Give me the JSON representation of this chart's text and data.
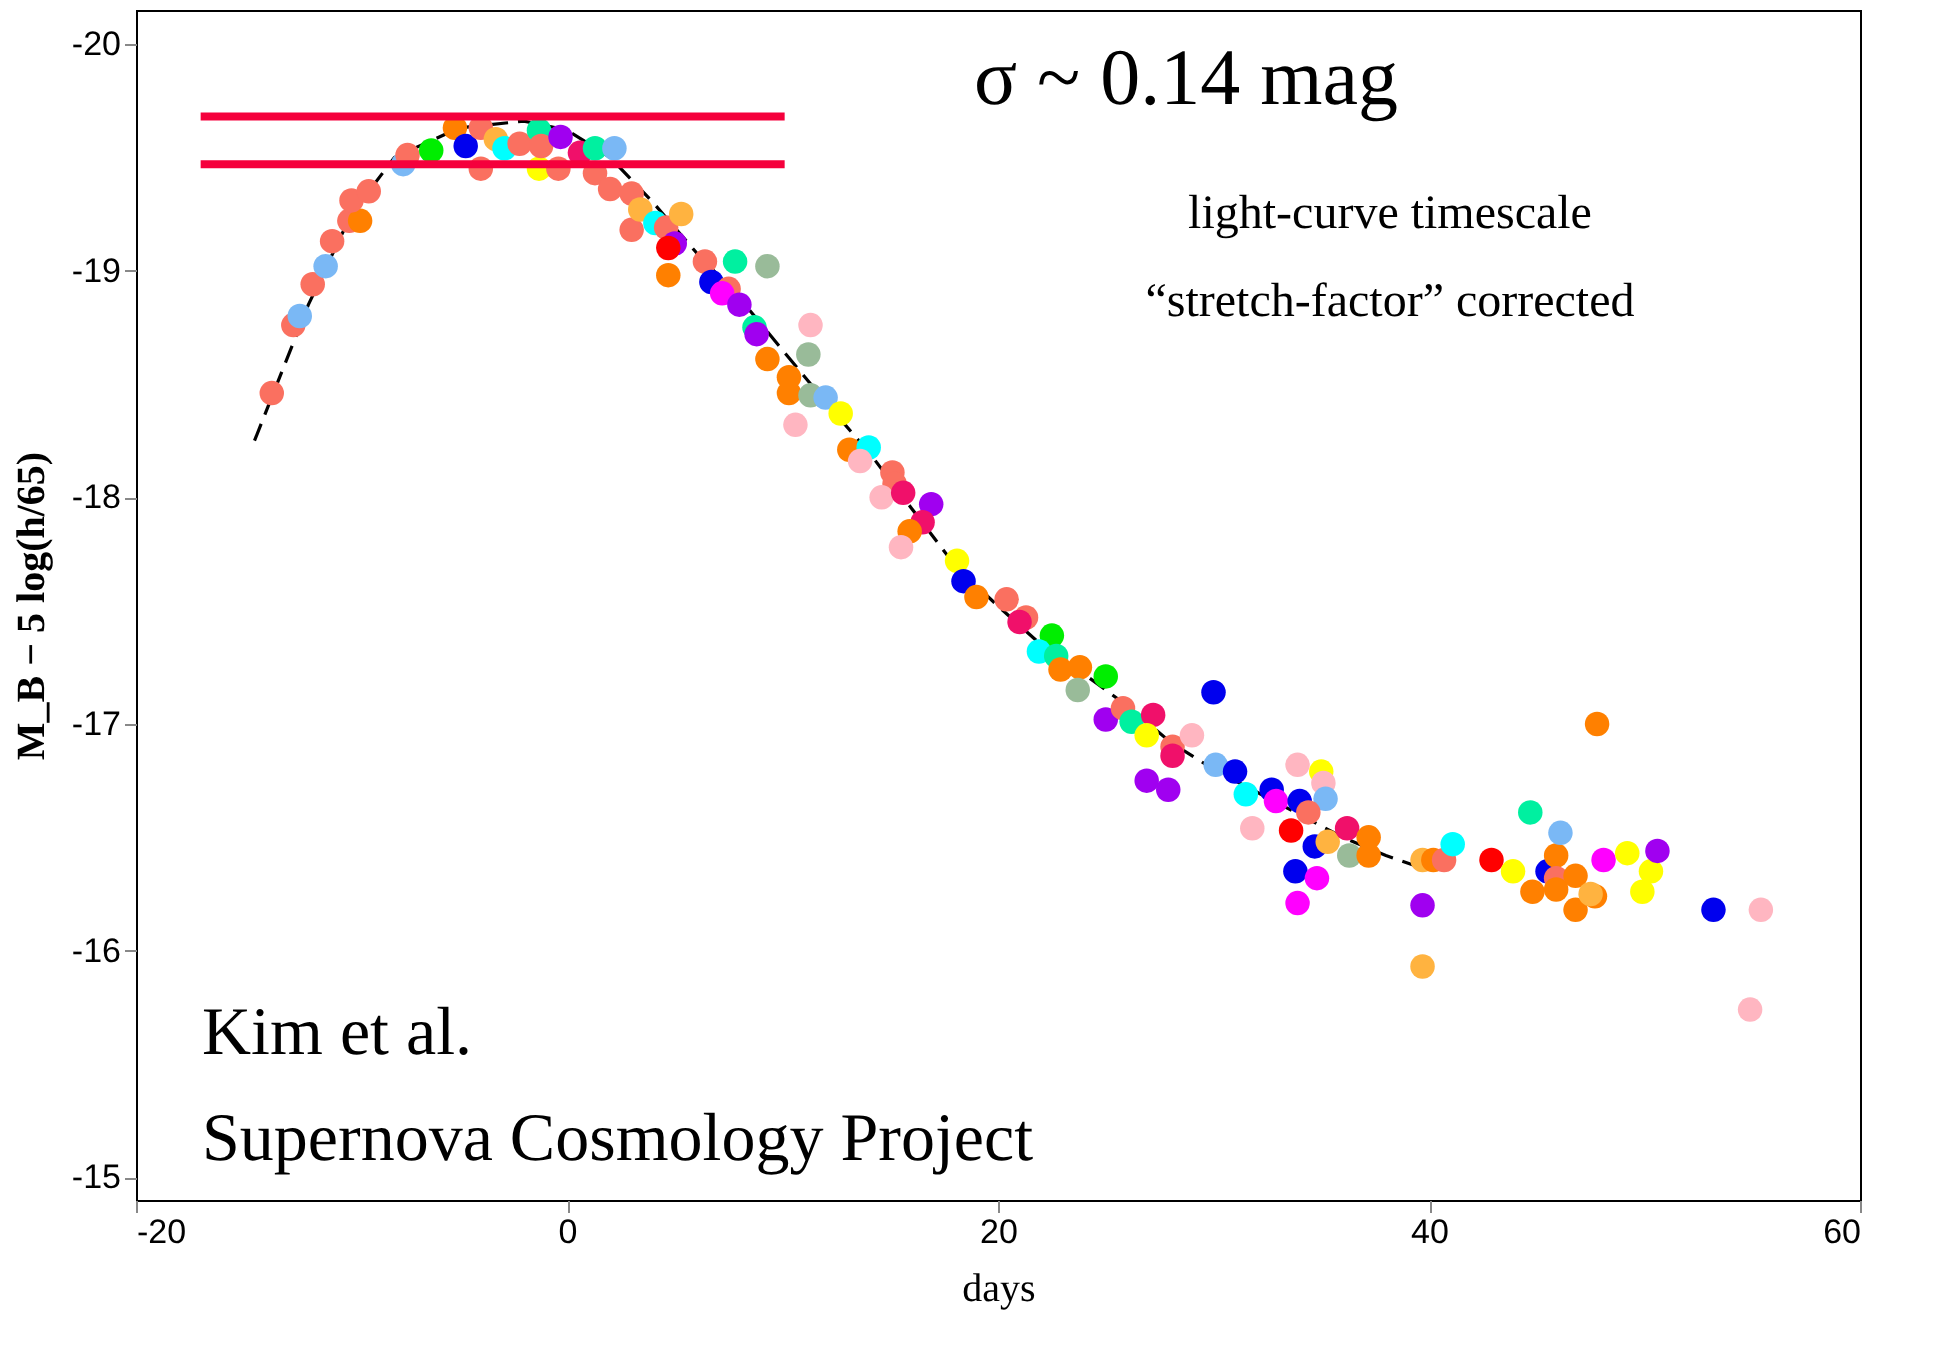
{
  "chart_data": {
    "type": "scatter",
    "xlabel": "days",
    "ylabel": "M_B − 5 log(h/65)",
    "xlim": [
      -20,
      60
    ],
    "ylim": [
      -14.9,
      -20.15
    ],
    "xticks": [
      -20,
      0,
      20,
      40,
      60
    ],
    "yticks": [
      -20,
      -19,
      -18,
      -17,
      -16,
      -15
    ],
    "grid": false,
    "annotations": [
      "σ ~ 0.14 mag",
      "light-curve timescale",
      "“stretch-factor” corrected",
      "Kim et al.",
      "Supernova Cosmology Project"
    ],
    "series": [
      {
        "type": "line",
        "color": "#000000",
        "line_style": "dashed",
        "marker": "none",
        "x": [
          -14.5,
          -12,
          -10,
          -8,
          -5,
          -2,
          0,
          2,
          4,
          6,
          8,
          10,
          12,
          14,
          16,
          18,
          20,
          22,
          24,
          26,
          28,
          30,
          32,
          34,
          36,
          38,
          39.5
        ],
        "values": [
          -18.25,
          -18.85,
          -19.25,
          -19.5,
          -19.63,
          -19.66,
          -19.62,
          -19.5,
          -19.3,
          -19.08,
          -18.88,
          -18.65,
          -18.42,
          -18.2,
          -17.95,
          -17.7,
          -17.52,
          -17.35,
          -17.22,
          -17.08,
          -16.92,
          -16.8,
          -16.7,
          -16.6,
          -16.5,
          -16.42,
          -16.37
        ]
      },
      {
        "marker": "circle",
        "x": [
          -13.7,
          -12.7,
          -12.4,
          -11.8,
          -11.2,
          -10.9,
          -10.1,
          -9.6,
          -10.0,
          -9.2,
          -7.6,
          -7.4,
          -6.3,
          -5.2,
          -4.7,
          -4.0,
          -4.0,
          -3.3,
          -2.9,
          -2.2,
          -1.3,
          -1.3,
          -1.2,
          -0.3,
          -0.4,
          0.6,
          1.3,
          2.2,
          1.3,
          2.0,
          3.0,
          3.0,
          3.4,
          4.1,
          4.6,
          5.3,
          5.0,
          4.7,
          4.7,
          6.4,
          7.8,
          6.7,
          7.5,
          7.2,
          8.0,
          9.3,
          8.7,
          8.8,
          9.3,
          11.3,
          11.2,
          10.3,
          10.3,
          11.3,
          12.0,
          10.6,
          12.7,
          13.1,
          14.0,
          13.6,
          15.1,
          15.2,
          14.6,
          15.6,
          16.9,
          16.5,
          15.9,
          15.5,
          18.1,
          18.4,
          19.0,
          20.4,
          21.3,
          21.0,
          22.5,
          21.9,
          22.7,
          22.9,
          23.8,
          25.0,
          23.7,
          25.0,
          25.8,
          26.2,
          27.2,
          26.9,
          28.1,
          28.1,
          29.0,
          30.0,
          26.9,
          27.9,
          30.1,
          31.0,
          31.5,
          32.7,
          32.9,
          31.8,
          33.9,
          35.0,
          35.1,
          35.2,
          34.0,
          33.6,
          34.4,
          33.8,
          33.9,
          34.8,
          34.7,
          35.3,
          36.2,
          36.3,
          37.2,
          37.2,
          39.7,
          40.2,
          40.7,
          41.1,
          39.7,
          39.7,
          42.9,
          43.9,
          44.7,
          45.5,
          45.9,
          45.9,
          44.8,
          45.9,
          46.8,
          46.8,
          47.7,
          47.5,
          46.1,
          47.8,
          48.1,
          49.2,
          50.3,
          49.9,
          50.6,
          53.2,
          55.4,
          54.9
        ],
        "values": [
          -18.46,
          -18.76,
          -18.8,
          -18.94,
          -19.02,
          -19.13,
          -19.22,
          -19.22,
          -19.31,
          -19.35,
          -19.47,
          -19.51,
          -19.53,
          -19.63,
          -19.55,
          -19.63,
          -19.45,
          -19.58,
          -19.54,
          -19.56,
          -19.62,
          -19.45,
          -19.55,
          -19.59,
          -19.45,
          -19.52,
          -19.54,
          -19.54,
          -19.43,
          -19.36,
          -19.34,
          -19.18,
          -19.27,
          -19.21,
          -19.19,
          -19.25,
          -19.12,
          -19.1,
          -18.98,
          -19.04,
          -19.04,
          -18.95,
          -18.92,
          -18.9,
          -18.85,
          -19.02,
          -18.75,
          -18.72,
          -18.61,
          -18.76,
          -18.63,
          -18.53,
          -18.46,
          -18.45,
          -18.44,
          -18.32,
          -18.37,
          -18.21,
          -18.22,
          -18.16,
          -18.11,
          -18.06,
          -18.0,
          -18.02,
          -17.97,
          -17.89,
          -17.85,
          -17.78,
          -17.72,
          -17.63,
          -17.56,
          -17.55,
          -17.47,
          -17.45,
          -17.39,
          -17.32,
          -17.3,
          -17.24,
          -17.25,
          -17.21,
          -17.15,
          -17.02,
          -17.07,
          -17.01,
          -17.04,
          -16.95,
          -16.9,
          -16.86,
          -16.95,
          -17.14,
          -16.75,
          -16.71,
          -16.82,
          -16.79,
          -16.69,
          -16.71,
          -16.66,
          -16.54,
          -16.82,
          -16.79,
          -16.74,
          -16.67,
          -16.66,
          -16.53,
          -16.61,
          -16.35,
          -16.21,
          -16.32,
          -16.46,
          -16.48,
          -16.54,
          -16.42,
          -16.5,
          -16.42,
          -16.4,
          -16.4,
          -16.4,
          -16.47,
          -16.2,
          -15.93,
          -16.4,
          -16.35,
          -16.61,
          -16.35,
          -16.42,
          -16.32,
          -16.26,
          -16.27,
          -16.33,
          -16.18,
          -16.24,
          -16.25,
          -16.52,
          -17.0,
          -16.4,
          -16.43,
          -16.35,
          -16.26,
          -16.44,
          -16.18,
          -16.18,
          -15.74
        ],
        "colors": [
          "#fa7060",
          "#fa7060",
          "#7ab8f5",
          "#fa7060",
          "#7ab8f5",
          "#fa7060",
          "#fa7060",
          "#ff8000",
          "#fa7060",
          "#fa7060",
          "#7ab8f5",
          "#fa7060",
          "#00ee00",
          "#ff8000",
          "#0000ee",
          "#fa7060",
          "#fa7060",
          "#ffb340",
          "#00ffff",
          "#fa7060",
          "#00f0a0",
          "#ffff00",
          "#fa7060",
          "#a000f0",
          "#fa7060",
          "#f0106a",
          "#00f0a0",
          "#7ab8f5",
          "#fa7060",
          "#fa7060",
          "#fa7060",
          "#fa7060",
          "#ffb340",
          "#00ffff",
          "#fa7060",
          "#ffb340",
          "#a000f0",
          "#ff0000",
          "#ff8000",
          "#fa7060",
          "#00f0a0",
          "#0000ee",
          "#fa7060",
          "#ff00ff",
          "#a000f0",
          "#99bb99",
          "#00f0a0",
          "#a000f0",
          "#ff8000",
          "#ffb6c1",
          "#99bb99",
          "#ff8000",
          "#ff8000",
          "#99bb99",
          "#7ab8f5",
          "#ffb6c1",
          "#ffff00",
          "#ff8000",
          "#00ffff",
          "#ffb6c1",
          "#fa7060",
          "#fa7060",
          "#ffb6c1",
          "#f0106a",
          "#a000f0",
          "#f0106a",
          "#ff8000",
          "#ffb6c1",
          "#ffff00",
          "#0000ee",
          "#ff8000",
          "#fa7060",
          "#fa7060",
          "#f0106a",
          "#00ee00",
          "#00ffff",
          "#00f0a0",
          "#ff8000",
          "#ff8000",
          "#00ee00",
          "#99bb99",
          "#a000f0",
          "#fa7060",
          "#00f0a0",
          "#f0106a",
          "#ffff00",
          "#fa7060",
          "#f0106a",
          "#ffb6c1",
          "#0000ee",
          "#a000f0",
          "#a000f0",
          "#7ab8f5",
          "#0000ee",
          "#00ffff",
          "#0000ee",
          "#ff00ff",
          "#ffb6c1",
          "#ffb6c1",
          "#ffff00",
          "#ffb6c1",
          "#7ab8f5",
          "#0000ee",
          "#ff0000",
          "#fa7060",
          "#0000ee",
          "#ff00ff",
          "#ff00ff",
          "#0000ee",
          "#ffb340",
          "#f0106a",
          "#99bb99",
          "#ff8000",
          "#ff8000",
          "#ffb340",
          "#ff8000",
          "#fa7060",
          "#00ffff",
          "#a000f0",
          "#ffb340",
          "#ff0000",
          "#ffff00",
          "#00f0a0",
          "#0000ee",
          "#ff8000",
          "#fa7060",
          "#ff8000",
          "#ff8000",
          "#ff8000",
          "#ff8000",
          "#ff8000",
          "#ffb340",
          "#7ab8f5",
          "#ff8000",
          "#ff00ff",
          "#ffff00",
          "#ffff00",
          "#ffff00",
          "#a000f0",
          "#0000ee",
          "#ffb6c1",
          "#ffb6c1"
        ]
      },
      {
        "type": "line",
        "color": "#f5003c",
        "marker": "none",
        "x": [
          -17,
          10.1
        ],
        "values": [
          -19.68,
          -19.68
        ]
      },
      {
        "type": "line",
        "color": "#f5003c",
        "marker": "none",
        "x": [
          -17,
          10.1
        ],
        "values": [
          -19.47,
          -19.47
        ]
      }
    ]
  }
}
